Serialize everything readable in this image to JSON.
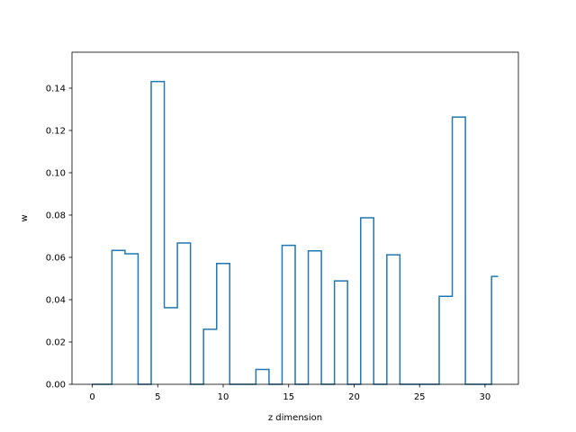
{
  "chart_data": {
    "type": "line",
    "style": "step",
    "xlabel": "z dimension",
    "ylabel": "w",
    "xlim": [
      -1.55,
      32.55
    ],
    "ylim": [
      0.0,
      0.157
    ],
    "x": [
      0,
      1,
      2,
      3,
      4,
      5,
      6,
      7,
      8,
      9,
      10,
      11,
      12,
      13,
      14,
      15,
      16,
      17,
      18,
      19,
      20,
      21,
      22,
      23,
      24,
      25,
      26,
      27,
      28,
      29,
      30,
      31
    ],
    "series": [
      {
        "values": [
          0.0,
          0.0,
          0.0633,
          0.0617,
          0.0,
          0.1431,
          0.0362,
          0.0668,
          0.0,
          0.026,
          0.0571,
          0.0,
          0.0,
          0.007,
          0.0,
          0.0657,
          0.0,
          0.0631,
          0.0,
          0.0489,
          0.0,
          0.0787,
          0.0,
          0.0612,
          0.0,
          0.0,
          0.0,
          0.0416,
          0.1263,
          0.0,
          0.0,
          0.051
        ],
        "color": "#1f77b4"
      }
    ],
    "xticks": [
      0,
      5,
      10,
      15,
      20,
      25,
      30
    ],
    "xtick_labels": [
      "0",
      "5",
      "10",
      "15",
      "20",
      "25",
      "30"
    ],
    "yticks": [
      0.0,
      0.02,
      0.04,
      0.06,
      0.08,
      0.1,
      0.12,
      0.14
    ],
    "ytick_labels": [
      "0.00",
      "0.02",
      "0.04",
      "0.06",
      "0.08",
      "0.10",
      "0.12",
      "0.14"
    ],
    "grid": false,
    "legend": "none"
  }
}
